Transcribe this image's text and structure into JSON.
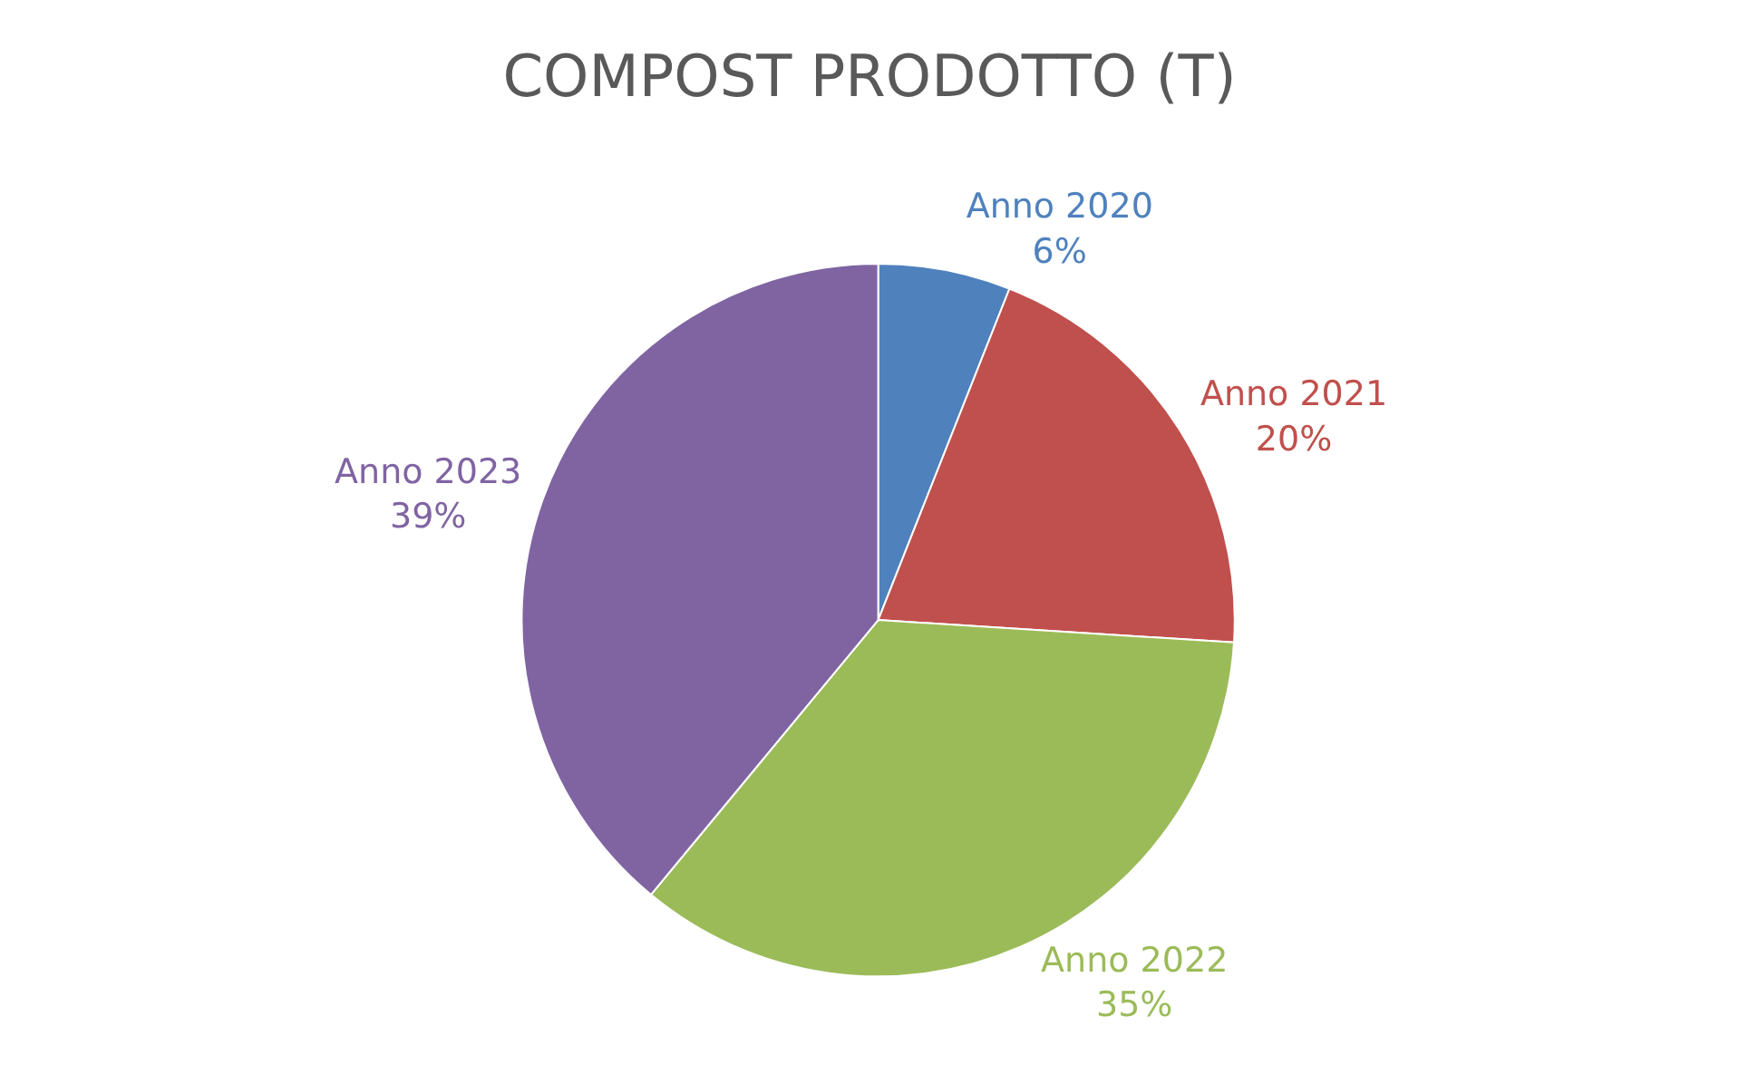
{
  "chart_data": {
    "type": "pie",
    "title": "COMPOST PRODOTTO (T)",
    "categories": [
      "Anno 2020",
      "Anno 2021",
      "Anno 2022",
      "Anno 2023"
    ],
    "values": [
      6,
      20,
      35,
      39
    ],
    "value_labels": [
      "6%",
      "20%",
      "35%",
      "39%"
    ],
    "colors": [
      "#4f81bd",
      "#c0504d",
      "#9bbb59",
      "#8064a2"
    ],
    "legend": false
  }
}
